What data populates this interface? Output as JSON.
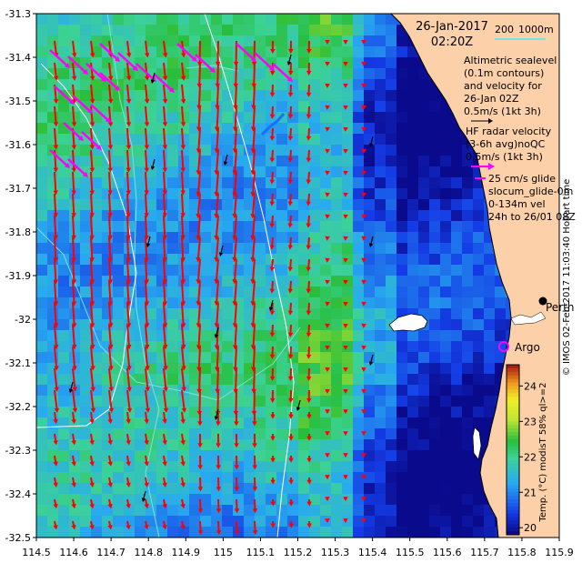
{
  "header": {
    "date": "26-Jan-2017",
    "time": "02:20Z"
  },
  "scale_bar": {
    "label_left": "200",
    "label_right": "1000m",
    "color": "#7fe0e0"
  },
  "legend": {
    "altimetry_lines": [
      "Altimetric sealevel",
      "(0.1m contours)",
      "and velocity for",
      "26-Jan 02Z",
      "0.5m/s (1kt 3h)"
    ],
    "hf_radar_lines": [
      "HF radar velocity",
      "(3-6h avg)noQC",
      "0.5m/s (1kt 3h)"
    ],
    "glider_lines": [
      "25 cm/s glide",
      "slocum_glide-0m",
      "0-134m vel",
      "24h to 26/01 08Z"
    ],
    "altimetry_arrow_color": "#000000",
    "hf_radar_arrow_color": "#ff00ff",
    "glider_arrow_color": "#ff00ff"
  },
  "places": {
    "perth": "Perth",
    "argo": "Argo",
    "argo_color": "#ff00ff"
  },
  "axes": {
    "x_ticks": [
      "114.5",
      "114.6",
      "114.7",
      "114.8",
      "114.9",
      "115",
      "115.1",
      "115.2",
      "115.3",
      "115.4",
      "115.5",
      "115.6",
      "115.7",
      "115.8",
      "115.9"
    ],
    "y_ticks": [
      "-31.3",
      "-31.4",
      "-31.5",
      "-31.6",
      "-31.7",
      "-31.8",
      "-31.9",
      "-32",
      "-32.1",
      "-32.2",
      "-32.3",
      "-32.4",
      "-32.5"
    ],
    "xlim": [
      114.5,
      115.9
    ],
    "ylim": [
      -32.5,
      -31.3
    ]
  },
  "colorbar": {
    "ticks": [
      "20",
      "21",
      "22",
      "23",
      "24"
    ],
    "range": [
      19.8,
      24.6
    ],
    "label": "Temp. (°C) modisT 58% ql>=2"
  },
  "credit": "© IMOS 02-Feb-2017 11:03:40 Hobart time",
  "colors": {
    "land": "#fcd0a8",
    "current_arrows": "#ff0000",
    "contours": "#ffffff",
    "isobaths": "#7fe0e0"
  }
}
